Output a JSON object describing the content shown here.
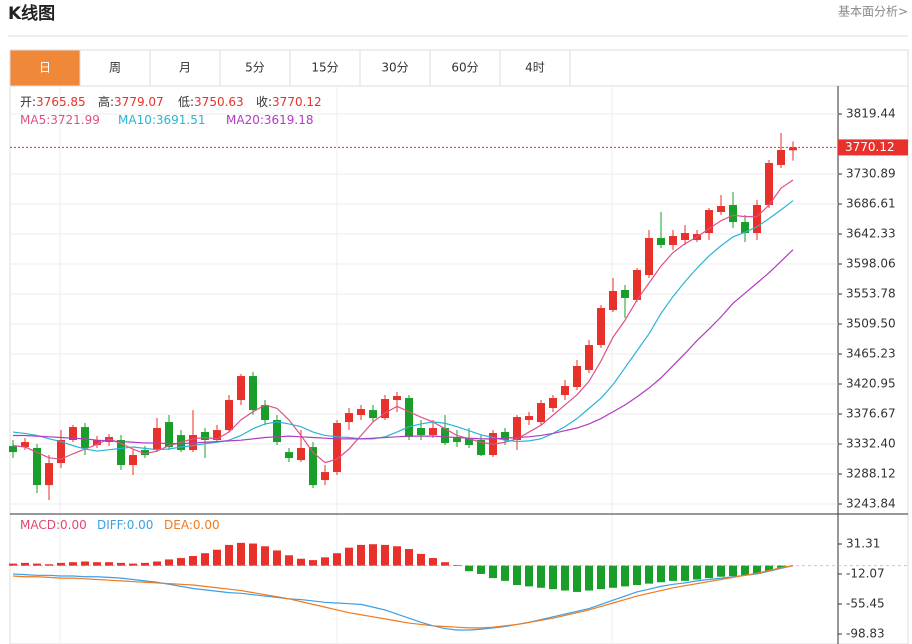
{
  "header": {
    "title": "K线图",
    "link": "基本面分析>"
  },
  "tabs": [
    "日",
    "周",
    "月",
    "5分",
    "15分",
    "30分",
    "60分",
    "4时"
  ],
  "active_tab": 0,
  "chart_data": [
    {
      "type": "candlestick",
      "up_color": "#e8312a",
      "down_color": "#1a9e2a",
      "grid": true,
      "info": [
        {
          "label": "开:",
          "value": 3765.85
        },
        {
          "label": "高:",
          "value": 3779.07
        },
        {
          "label": "低:",
          "value": 3750.63
        },
        {
          "label": "收:",
          "value": 3770.12
        }
      ],
      "info_color": "#e8312a",
      "ylim": [
        3229.1,
        3857.8
      ],
      "yticks": [
        3819.44,
        3730.89,
        3686.61,
        3642.33,
        3598.06,
        3553.78,
        {
          "value": 3509.5,
          "label": "3509.50"
        },
        3465.23,
        3420.95,
        3376.67,
        {
          "value": 3332.4,
          "label": "3332.40"
        },
        3288.12,
        3243.84
      ],
      "open": [
        3329.4,
        3327.9,
        3326.5,
        3271.8,
        3304.3,
        3338.3,
        3357.4,
        3330.9,
        3335.3,
        3338.3,
        3301.4,
        3323.5,
        3323.5,
        3364.8,
        3345.6,
        3323.5,
        3350.1,
        3338.3,
        3353.0,
        3397.3,
        3432.7,
        3389.9,
        3367.8,
        3320.5,
        3308.7,
        3327.9,
        3279.2,
        3291.0,
        3364.8,
        3375.2,
        3382.5,
        3370.7,
        3397.3,
        3400.3,
        3356.0,
        3345.6,
        3356.0,
        3341.2,
        3341.2,
        3338.3,
        3316.1,
        3350.1,
        3338.3,
        3367.8,
        3364.8,
        3385.5,
        3404.7,
        3416.5,
        3441.6,
        3478.5,
        3530.1,
        3559.7,
        3544.9,
        3581.8,
        3636.4,
        3626.1,
        3633.5,
        3633.5,
        3643.8,
        3674.8,
        3685.1,
        3660.0,
        3643.8,
        3685.1,
        3744.2,
        3765.85
      ],
      "high": [
        3338.3,
        3341.2,
        3332.4,
        3316.1,
        3353.0,
        3360.4,
        3363.4,
        3344.2,
        3347.1,
        3345.6,
        3323.5,
        3329.4,
        3370.7,
        3375.2,
        3353.0,
        3382.5,
        3356.0,
        3360.4,
        3404.7,
        3435.7,
        3438.6,
        3397.3,
        3375.2,
        3326.5,
        3353.0,
        3335.3,
        3301.4,
        3367.8,
        3385.5,
        3389.9,
        3389.9,
        3404.7,
        3409.1,
        3404.7,
        3367.8,
        3367.8,
        3375.2,
        3353.0,
        3356.0,
        3345.6,
        3353.0,
        3356.0,
        3375.2,
        3379.6,
        3397.3,
        3404.7,
        3426.8,
        3456.3,
        3485.9,
        3537.5,
        3577.4,
        3567.0,
        3592.1,
        3648.2,
        3674.8,
        3648.2,
        3655.6,
        3648.2,
        3680.7,
        3699.9,
        3704.3,
        3670.4,
        3692.5,
        3751.5,
        3791.4,
        3779.07
      ],
      "low": [
        3311.7,
        3323.5,
        3260.0,
        3249.7,
        3296.9,
        3335.3,
        3316.1,
        3326.5,
        3329.4,
        3294.0,
        3286.6,
        3311.7,
        3320.5,
        3323.5,
        3320.5,
        3320.5,
        3311.7,
        3335.3,
        3350.1,
        3389.9,
        3375.2,
        3360.4,
        3330.9,
        3305.8,
        3305.8,
        3267.4,
        3271.8,
        3286.6,
        3353.0,
        3367.8,
        3364.8,
        3367.8,
        3379.6,
        3338.3,
        3338.3,
        3341.2,
        3330.9,
        3327.9,
        3326.5,
        3314.6,
        3313.2,
        3330.9,
        3323.5,
        3360.4,
        3360.4,
        3379.6,
        3397.3,
        3412.1,
        3437.2,
        3474.1,
        3527.2,
        3518.3,
        3541.9,
        3577.4,
        3621.7,
        3618.7,
        3626.1,
        3630.5,
        3633.5,
        3670.4,
        3651.2,
        3630.5,
        3633.5,
        3680.7,
        3739.7,
        3750.63
      ],
      "close": [
        3320.5,
        3335.3,
        3271.8,
        3304.3,
        3338.3,
        3357.4,
        3326.5,
        3338.3,
        3342.7,
        3301.4,
        3316.1,
        3316.1,
        3356.0,
        3327.9,
        3323.5,
        3345.6,
        3338.3,
        3353.0,
        3397.3,
        3432.7,
        3382.5,
        3367.8,
        3335.3,
        3311.7,
        3326.5,
        3271.8,
        3291.0,
        3363.4,
        3378.1,
        3384.0,
        3370.7,
        3398.8,
        3403.2,
        3342.7,
        3345.6,
        3356.0,
        3333.8,
        3335.3,
        3330.9,
        3316.1,
        3348.6,
        3338.3,
        3372.2,
        3373.7,
        3392.9,
        3400.3,
        3418.0,
        3447.5,
        3478.5,
        3533.1,
        3558.2,
        3547.9,
        3589.2,
        3636.4,
        3626.1,
        3639.4,
        3643.8,
        3642.3,
        3677.7,
        3683.6,
        3660.0,
        3643.8,
        3685.1,
        3747.1,
        3766.3,
        3770.12
      ],
      "series": [
        {
          "name": "MA5:",
          "current": 3721.99,
          "color": "#e0508a",
          "values": [
            3330,
            3328,
            3320,
            3312,
            3310,
            3318,
            3325,
            3332,
            3340,
            3333,
            3325,
            3318,
            3322,
            3330,
            3335,
            3340,
            3342,
            3340,
            3350,
            3368,
            3380,
            3390,
            3385,
            3368,
            3345,
            3320,
            3305,
            3310,
            3325,
            3345,
            3365,
            3378,
            3388,
            3380,
            3372,
            3365,
            3355,
            3345,
            3340,
            3335,
            3332,
            3335,
            3340,
            3350,
            3360,
            3375,
            3390,
            3405,
            3425,
            3455,
            3490,
            3515,
            3545,
            3570,
            3595,
            3615,
            3628,
            3638,
            3650,
            3662,
            3670,
            3668,
            3668,
            3685,
            3710,
            3721.99
          ]
        },
        {
          "name": "MA10:",
          "current": 3691.51,
          "color": "#2db3d4",
          "values": [
            3350,
            3348,
            3345,
            3340,
            3336,
            3330,
            3325,
            3322,
            3324,
            3326,
            3328,
            3326,
            3324,
            3325,
            3328,
            3330,
            3333,
            3335,
            3338,
            3345,
            3355,
            3362,
            3365,
            3362,
            3358,
            3350,
            3345,
            3343,
            3342,
            3340,
            3340,
            3343,
            3350,
            3358,
            3362,
            3365,
            3363,
            3358,
            3352,
            3346,
            3342,
            3338,
            3336,
            3337,
            3340,
            3348,
            3358,
            3370,
            3385,
            3400,
            3420,
            3445,
            3470,
            3495,
            3525,
            3550,
            3572,
            3592,
            3610,
            3625,
            3638,
            3645,
            3653,
            3665,
            3678,
            3691.51
          ]
        },
        {
          "name": "MA20:",
          "current": 3619.18,
          "color": "#b03cc0",
          "values": [
            3345,
            3345,
            3344,
            3343,
            3342,
            3341,
            3340,
            3338,
            3337,
            3336,
            3335,
            3334,
            3334,
            3333,
            3333,
            3334,
            3335,
            3336,
            3337,
            3338,
            3340,
            3342,
            3343,
            3344,
            3343,
            3342,
            3341,
            3340,
            3340,
            3340,
            3341,
            3342,
            3343,
            3344,
            3344,
            3344,
            3343,
            3342,
            3341,
            3340,
            3340,
            3341,
            3342,
            3343,
            3345,
            3348,
            3352,
            3356,
            3362,
            3370,
            3380,
            3390,
            3402,
            3415,
            3430,
            3448,
            3466,
            3485,
            3502,
            3520,
            3540,
            3555,
            3570,
            3585,
            3602,
            3619.18
          ]
        }
      ]
    },
    {
      "type": "macd",
      "up_color": "#e8312a",
      "down_color": "#1a9e2a",
      "grid": false,
      "ylim": [
        -113.29,
        74.69
      ],
      "yticks": [
        31.31,
        -12.07,
        -55.45,
        -98.83
      ],
      "series": [
        {
          "name": "MACD:",
          "current": 0,
          "current_label": "0.00",
          "type": "bar",
          "color": "#e2476e",
          "values": [
            3,
            4,
            3,
            2,
            4,
            5,
            6,
            5,
            5,
            4,
            3,
            4,
            6,
            9,
            11,
            14,
            18,
            23,
            30,
            33,
            32,
            28,
            22,
            15,
            10,
            8,
            12,
            18,
            26,
            30,
            31,
            30,
            28,
            24,
            17,
            11,
            5,
            1,
            -8,
            -12,
            -18,
            -22,
            -28,
            -30,
            -32,
            -34,
            -36,
            -38,
            -36,
            -34,
            -32,
            -30,
            -28,
            -26,
            -24,
            -22,
            -22,
            -20,
            -18,
            -16,
            -15,
            -14,
            -12,
            -8,
            -3,
            0
          ]
        },
        {
          "name": "DIFF:",
          "current": 0,
          "current_label": "0.00",
          "type": "line",
          "color": "#3c9fe6",
          "values": [
            -12,
            -13,
            -14,
            -14,
            -15,
            -15,
            -16,
            -16,
            -17,
            -18,
            -20,
            -22,
            -24,
            -27,
            -30,
            -33,
            -35,
            -37,
            -39,
            -40,
            -42,
            -44,
            -46,
            -48,
            -49,
            -51,
            -53,
            -54,
            -55,
            -56,
            -60,
            -64,
            -70,
            -76,
            -82,
            -87,
            -91,
            -93,
            -93,
            -92,
            -90,
            -88,
            -85,
            -82,
            -78,
            -74,
            -70,
            -66,
            -62,
            -56,
            -50,
            -44,
            -38,
            -34,
            -30,
            -27,
            -25,
            -22,
            -20,
            -18,
            -16,
            -14,
            -12,
            -8,
            -4,
            0
          ]
        },
        {
          "name": "DEA:",
          "current": 0,
          "current_label": "0.00",
          "type": "line",
          "color": "#f07a1e",
          "values": [
            -15,
            -16,
            -16,
            -17,
            -18,
            -18,
            -19,
            -20,
            -21,
            -22,
            -23,
            -24,
            -25,
            -26,
            -27,
            -28,
            -30,
            -32,
            -34,
            -36,
            -39,
            -42,
            -45,
            -48,
            -52,
            -56,
            -60,
            -64,
            -68,
            -71,
            -74,
            -77,
            -80,
            -83,
            -85,
            -87,
            -88,
            -89,
            -90,
            -90,
            -89,
            -87,
            -85,
            -82,
            -79,
            -76,
            -72,
            -68,
            -64,
            -59,
            -54,
            -49,
            -44,
            -40,
            -36,
            -32,
            -29,
            -26,
            -23,
            -20,
            -17,
            -14,
            -11,
            -7,
            -3,
            0
          ]
        }
      ]
    }
  ]
}
